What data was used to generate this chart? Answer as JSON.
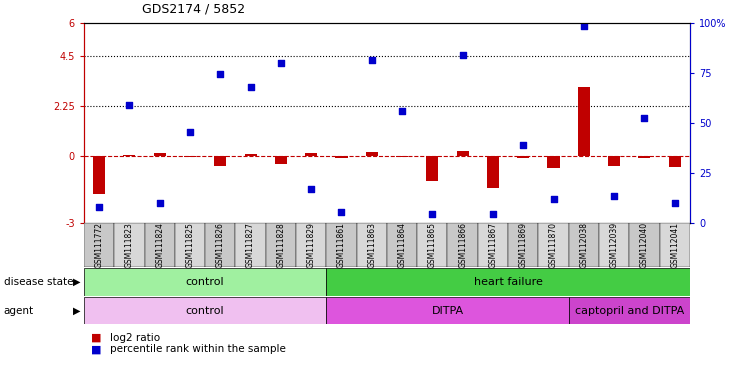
{
  "title": "GDS2174 / 5852",
  "samples": [
    "GSM111772",
    "GSM111823",
    "GSM111824",
    "GSM111825",
    "GSM111826",
    "GSM111827",
    "GSM111828",
    "GSM111829",
    "GSM111861",
    "GSM111863",
    "GSM111864",
    "GSM111865",
    "GSM111866",
    "GSM111867",
    "GSM111869",
    "GSM111870",
    "GSM112038",
    "GSM112039",
    "GSM112040",
    "GSM112041"
  ],
  "log2_ratio": [
    -1.7,
    0.05,
    0.15,
    -0.05,
    -0.45,
    0.1,
    -0.35,
    0.15,
    -0.1,
    0.2,
    -0.05,
    -1.1,
    0.25,
    -1.45,
    -0.1,
    -0.55,
    3.1,
    -0.45,
    -0.1,
    -0.5
  ],
  "percentile_rank": [
    -2.3,
    2.3,
    -2.1,
    1.1,
    3.7,
    3.1,
    4.2,
    -1.5,
    -2.5,
    4.35,
    2.05,
    -2.6,
    4.55,
    -2.6,
    0.5,
    -1.95,
    5.85,
    -1.8,
    1.7,
    -2.1
  ],
  "bar_color": "#c00000",
  "dot_color": "#0000cc",
  "dashed_line_color": "#c00000",
  "ylim_left": [
    -3,
    6
  ],
  "hline_values": [
    2.25,
    4.5
  ],
  "left_yticks": [
    -3,
    0,
    2.25,
    4.5,
    6
  ],
  "left_yticklabels": [
    "-3",
    "0",
    "2.25",
    "4.5",
    "6"
  ],
  "right_yticks": [
    0,
    25,
    50,
    75,
    100
  ],
  "right_yticklabels": [
    "0",
    "25",
    "50",
    "75",
    "100%"
  ],
  "disease_state_groups": [
    {
      "label": "control",
      "start": 0,
      "end": 8,
      "color": "#a0f0a0"
    },
    {
      "label": "heart failure",
      "start": 8,
      "end": 20,
      "color": "#44cc44"
    }
  ],
  "agent_groups": [
    {
      "label": "control",
      "start": 0,
      "end": 8,
      "color": "#f0c0f0"
    },
    {
      "label": "DITPA",
      "start": 8,
      "end": 16,
      "color": "#dd66dd"
    },
    {
      "label": "captopril and DITPA",
      "start": 16,
      "end": 20,
      "color": "#dd66dd"
    }
  ],
  "background_color": "#ffffff",
  "bar_width": 0.4,
  "dot_size": 20,
  "xtick_box_colors": [
    "#c8c8c8",
    "#d8d8d8"
  ]
}
